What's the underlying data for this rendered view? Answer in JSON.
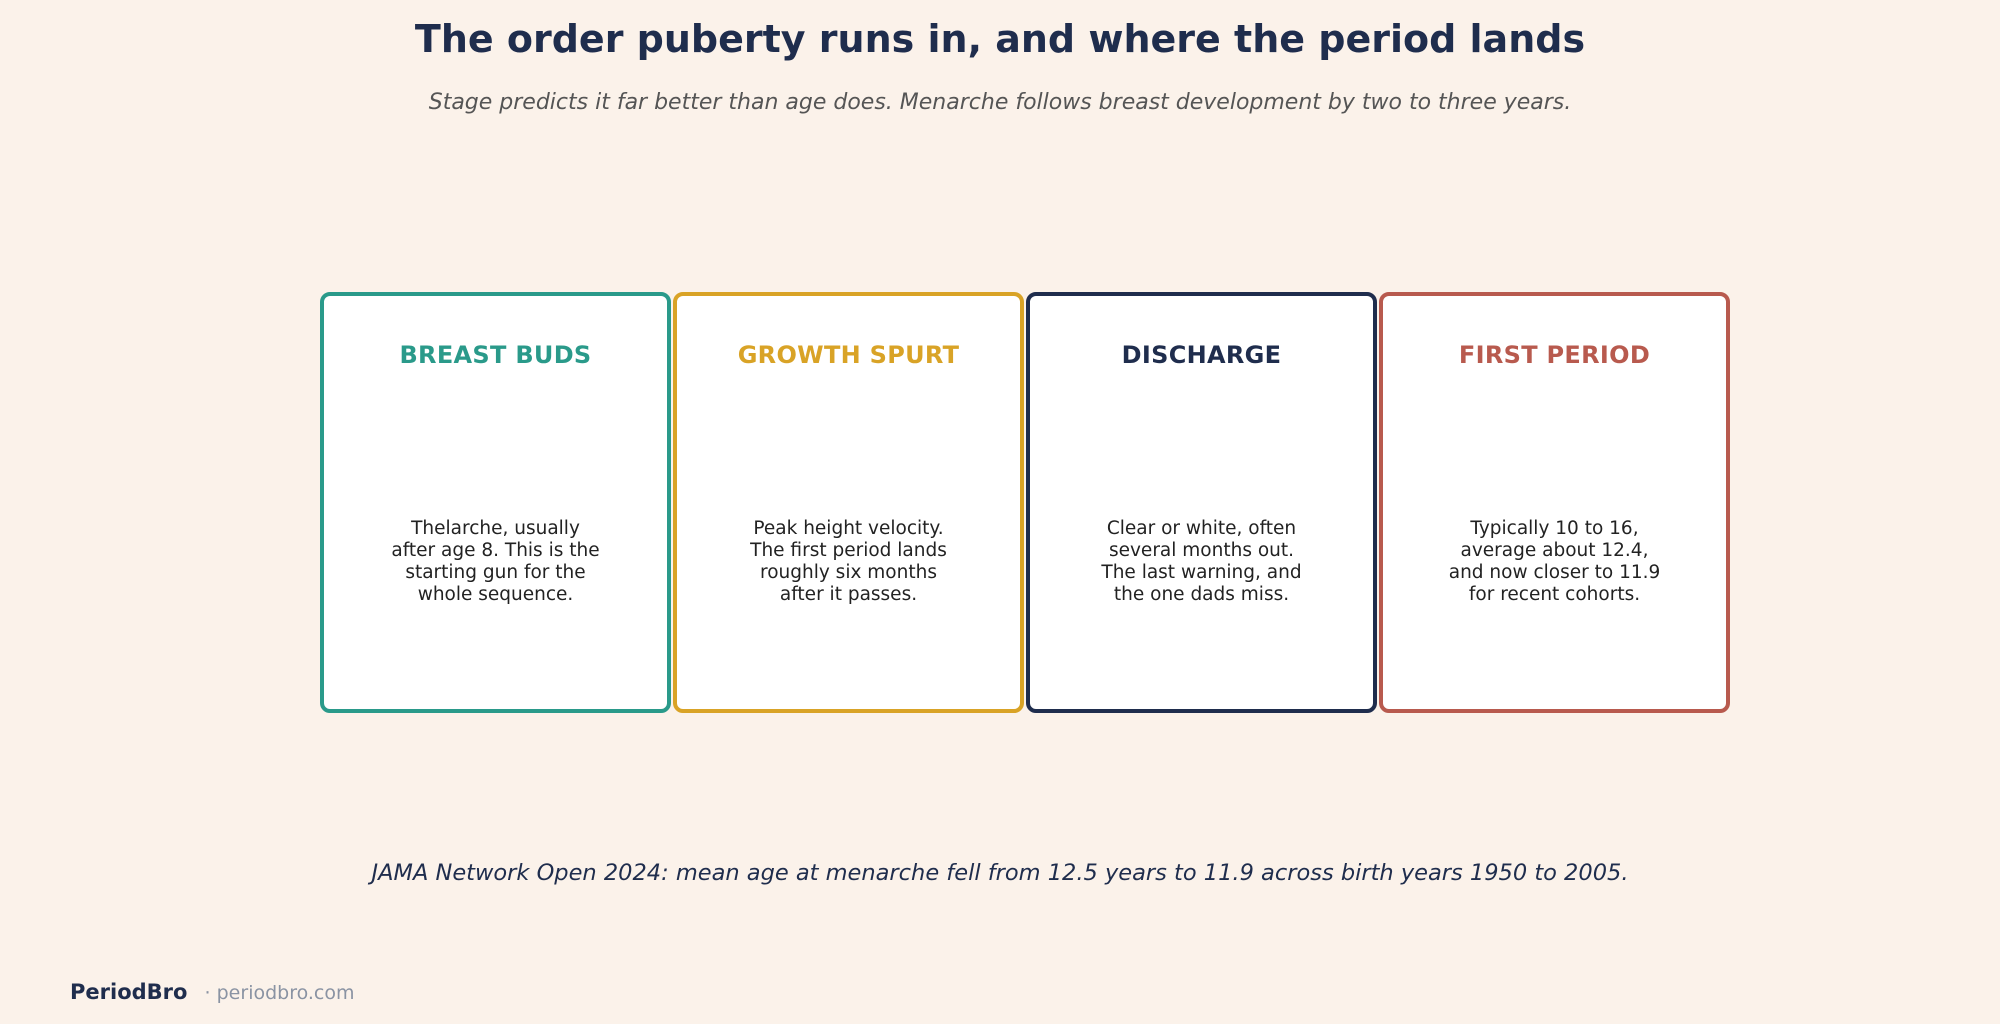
{
  "title": "The order puberty runs in, and where the period lands",
  "subtitle": "Stage predicts it far better than age does. Menarche follows breast development by two to three years.",
  "stages": [
    {
      "title": "BREAST BUDS",
      "body": "Thelarche, usually\nafter age 8. This is the\nstarting gun for the\nwhole sequence.",
      "color": "#2a9a8a"
    },
    {
      "title": "GROWTH SPURT",
      "body": "Peak height velocity.\nThe first period lands\nroughly six months\nafter it passes.",
      "color": "#d9a326"
    },
    {
      "title": "DISCHARGE",
      "body": "Clear or white, often\nseveral months out.\nThe last warning, and\nthe one dads miss.",
      "color": "#1f2d4d"
    },
    {
      "title": "FIRST PERIOD",
      "body": "Typically 10 to 16,\naverage about 12.4,\nand now closer to 11.9\nfor recent cohorts.",
      "color": "#b85a4e"
    }
  ],
  "footnote": "JAMA Network Open 2024: mean age at menarche fell from 12.5 years to 11.9 across birth years 1950 to 2005.",
  "brand": {
    "name": "PeriodBro",
    "url": "· periodbro.com"
  }
}
